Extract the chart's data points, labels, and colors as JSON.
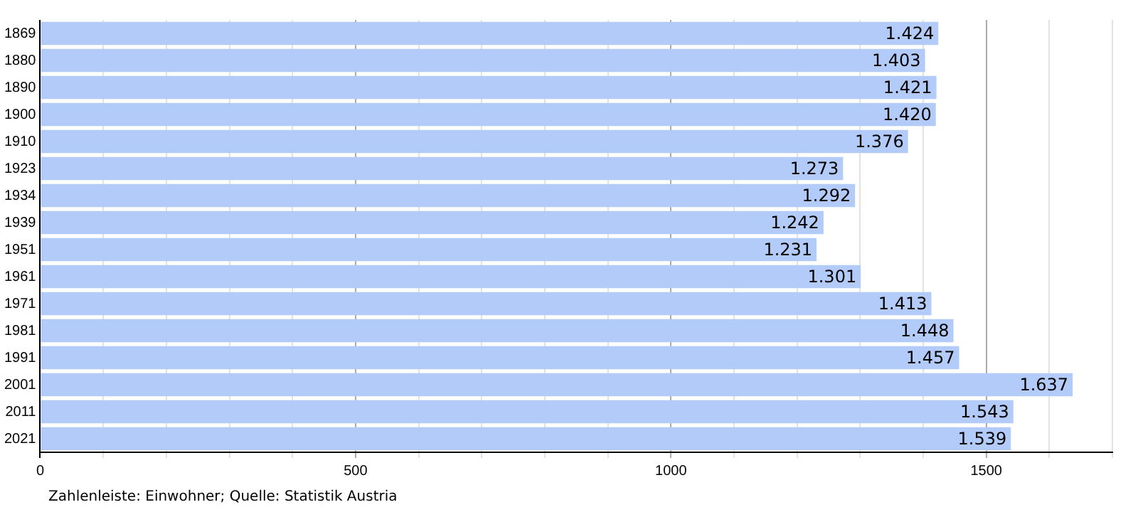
{
  "chart_data": {
    "type": "bar",
    "orientation": "horizontal",
    "categories": [
      "1869",
      "1880",
      "1890",
      "1900",
      "1910",
      "1923",
      "1934",
      "1939",
      "1951",
      "1961",
      "1971",
      "1981",
      "1991",
      "2001",
      "2011",
      "2021"
    ],
    "values": [
      1424,
      1403,
      1421,
      1420,
      1376,
      1273,
      1292,
      1242,
      1231,
      1301,
      1413,
      1448,
      1457,
      1637,
      1543,
      1539
    ],
    "value_labels": [
      "1.424",
      "1.403",
      "1.421",
      "1.420",
      "1.376",
      "1.273",
      "1.292",
      "1.242",
      "1.231",
      "1.301",
      "1.413",
      "1.448",
      "1.457",
      "1.637",
      "1.543",
      "1.539"
    ],
    "color": "#b3cbf9",
    "xlim": [
      0,
      1700
    ],
    "xticks": [
      0,
      {
        "value": 100,
        "label": null
      },
      {
        "value": 200,
        "label": null
      },
      {
        "value": 300,
        "label": null
      },
      {
        "value": 400,
        "label": null
      },
      500,
      {
        "value": 600,
        "label": null
      },
      {
        "value": 700,
        "label": null
      },
      {
        "value": 800,
        "label": null
      },
      {
        "value": 900,
        "label": null
      },
      1000,
      {
        "value": 1100,
        "label": null
      },
      {
        "value": 1200,
        "label": null
      },
      {
        "value": 1300,
        "label": null
      },
      {
        "value": 1400,
        "label": null
      },
      1500,
      {
        "value": 1600,
        "label": null
      },
      {
        "value": 1700,
        "label": null
      }
    ],
    "grid": "x",
    "legend": false,
    "annotations": [
      "Zahlenleiste: Einwohner; Quelle: Statistik Austria"
    ]
  }
}
